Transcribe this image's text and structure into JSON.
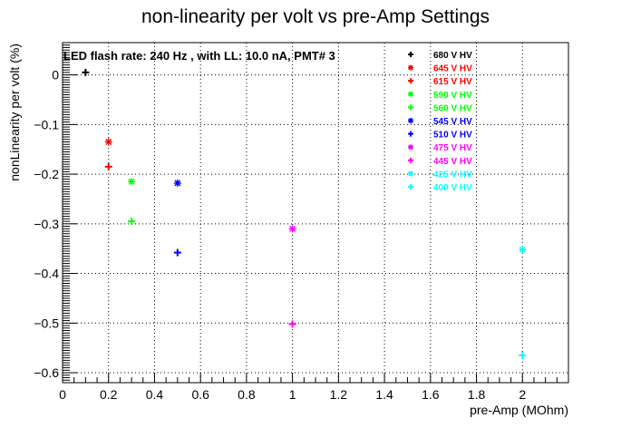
{
  "chart_data": {
    "type": "scatter",
    "title": "non-linearity per volt vs pre-Amp Settings",
    "annotation": "LED flash rate: 240 Hz , with LL: 10.0 nA, PMT# 3",
    "xlabel": "pre-Amp (MOhm)",
    "ylabel": "nonLinearity per volt (%)",
    "xlim": [
      0,
      2.2
    ],
    "ylim": [
      -0.62,
      0.065
    ],
    "xticks": [
      0,
      0.2,
      0.4,
      0.6,
      0.8,
      1,
      1.2,
      1.4,
      1.6,
      1.8,
      2
    ],
    "xtick_labels": [
      "0",
      "0.2",
      "0.4",
      "0.6",
      "0.8",
      "1",
      "1.2",
      "1.4",
      "1.6",
      "1.8",
      "2"
    ],
    "yticks": [
      0,
      -0.1,
      -0.2,
      -0.3,
      -0.4,
      -0.5,
      -0.6
    ],
    "ytick_labels": [
      "0",
      "−0.1",
      "−0.2",
      "−0.3",
      "−0.4",
      "−0.5",
      "−0.6"
    ],
    "grid": true,
    "legend_position": "top-right",
    "series": [
      {
        "name": "680 V HV",
        "color": "#000000",
        "marker": "plus",
        "points": [
          [
            0.1,
            0.005
          ]
        ]
      },
      {
        "name": "645 V HV",
        "color": "#ff0000",
        "marker": "star",
        "points": [
          [
            0.2,
            -0.135
          ]
        ]
      },
      {
        "name": "615 V HV",
        "color": "#ff0000",
        "marker": "plus",
        "points": [
          [
            0.2,
            -0.185
          ]
        ]
      },
      {
        "name": "590 V HV",
        "color": "#00ff00",
        "marker": "star",
        "points": [
          [
            0.3,
            -0.215
          ]
        ]
      },
      {
        "name": "560 V HV",
        "color": "#00ff00",
        "marker": "plus",
        "points": [
          [
            0.3,
            -0.295
          ]
        ]
      },
      {
        "name": "545 V HV",
        "color": "#0000ff",
        "marker": "star",
        "points": [
          [
            0.5,
            -0.218
          ]
        ]
      },
      {
        "name": "510 V HV",
        "color": "#0000ff",
        "marker": "plus",
        "points": [
          [
            0.5,
            -0.358
          ]
        ]
      },
      {
        "name": "475 V HV",
        "color": "#ff00ff",
        "marker": "star",
        "points": [
          [
            1.0,
            -0.31
          ]
        ]
      },
      {
        "name": "445 V HV",
        "color": "#ff00ff",
        "marker": "plus",
        "points": [
          [
            1.0,
            -0.502
          ]
        ]
      },
      {
        "name": "425 V HV",
        "color": "#00ffff",
        "marker": "star",
        "points": [
          [
            2.0,
            -0.352
          ]
        ]
      },
      {
        "name": "400 V HV",
        "color": "#00ffff",
        "marker": "plus",
        "points": [
          [
            2.0,
            -0.565
          ]
        ]
      }
    ]
  }
}
